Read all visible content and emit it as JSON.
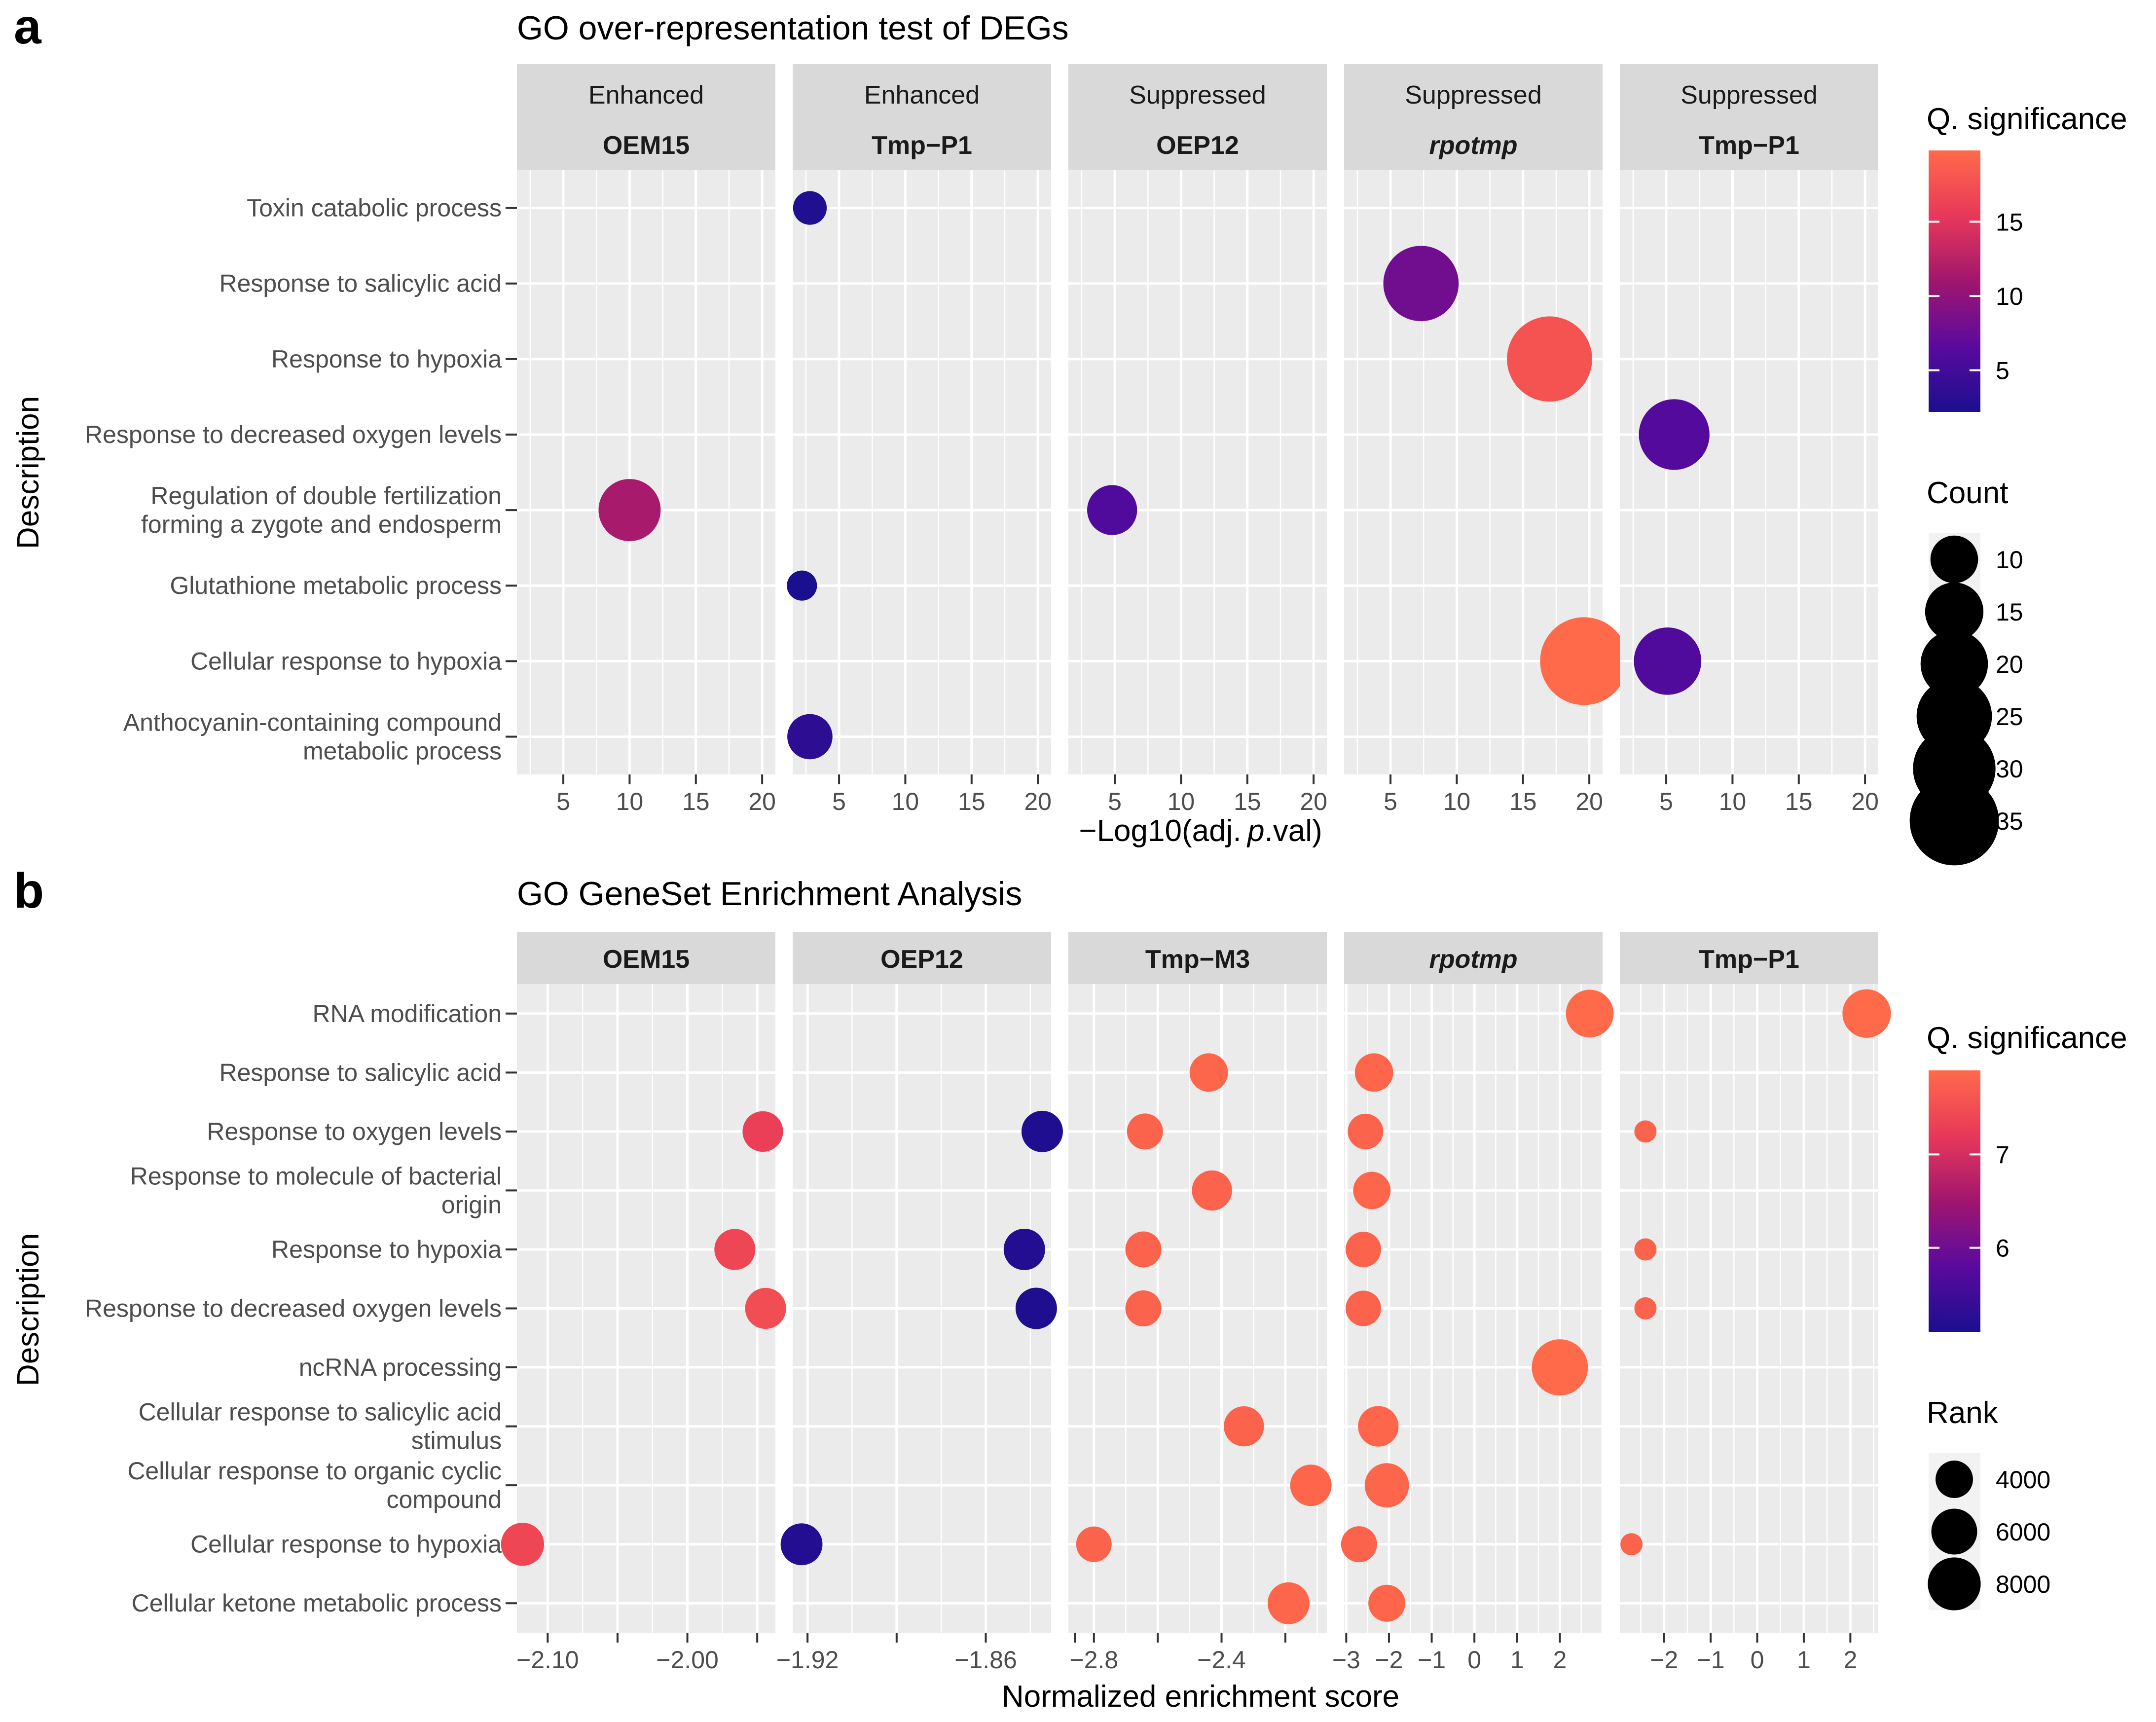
{
  "figure": {
    "panel_a_letter": "a",
    "panel_b_letter": "b"
  },
  "chart_data": [
    {
      "type": "scatter",
      "title": "GO over-representation test of DEGs",
      "ylabel": "Description",
      "xlabel_parts": [
        "−Log10(adj. ",
        "p",
        ".val)"
      ],
      "categories": [
        [
          "Toxin catabolic process"
        ],
        [
          "Response to salicylic acid"
        ],
        [
          "Response to hypoxia"
        ],
        [
          "Response to decreased oxygen levels"
        ],
        [
          "Regulation of double fertilization",
          "forming a zygote and endosperm"
        ],
        [
          "Glutathione metabolic process"
        ],
        [
          "Cellular response to hypoxia"
        ],
        [
          "Anthocyanin-containing compound",
          "metabolic process"
        ]
      ],
      "xlim": [
        1.5,
        21.0
      ],
      "xticks": [
        5,
        10,
        15,
        20
      ],
      "facets": [
        {
          "strip_top": "Enhanced",
          "strip_bottom": "OEM15",
          "italic": false,
          "points": [
            {
              "category": 4,
              "x": 10.0,
              "q": 11.5,
              "count": 17
            }
          ]
        },
        {
          "strip_top": "Enhanced",
          "strip_bottom": "Tmp−P1",
          "italic": false,
          "points": [
            {
              "category": 0,
              "x": 2.8,
              "q": 2.6,
              "count": 5
            },
            {
              "category": 5,
              "x": 2.2,
              "q": 2.2,
              "count": 4
            },
            {
              "category": 7,
              "x": 2.8,
              "q": 3.5,
              "count": 9
            }
          ]
        },
        {
          "strip_top": "Suppressed",
          "strip_bottom": "OEP12",
          "italic": false,
          "points": [
            {
              "category": 4,
              "x": 4.8,
              "q": 6.0,
              "count": 11
            }
          ]
        },
        {
          "strip_top": "Suppressed",
          "strip_bottom": "rpotmp",
          "italic": true,
          "points": [
            {
              "category": 1,
              "x": 7.3,
              "q": 8.0,
              "count": 25
            },
            {
              "category": 2,
              "x": 17.0,
              "q": 17.8,
              "count": 32
            },
            {
              "category": 6,
              "x": 19.6,
              "q": 19.8,
              "count": 34
            }
          ]
        },
        {
          "strip_top": "Suppressed",
          "strip_bottom": "Tmp−P1",
          "italic": false,
          "points": [
            {
              "category": 3,
              "x": 5.6,
              "q": 6.2,
              "count": 22
            },
            {
              "category": 6,
              "x": 5.1,
              "q": 6.0,
              "count": 20
            }
          ]
        }
      ],
      "color_legend": {
        "title": "Q. significance",
        "min": 2.2,
        "max": 19.8,
        "ticks": [
          5,
          10,
          15
        ]
      },
      "size_legend": {
        "title": "Count",
        "values": [
          10,
          15,
          20,
          25,
          30,
          35
        ]
      }
    },
    {
      "type": "scatter",
      "title": "GO GeneSet Enrichment Analysis",
      "ylabel": "Description",
      "xlabel": "Normalized enrichment score",
      "categories": [
        [
          "RNA modification"
        ],
        [
          "Response to salicylic acid"
        ],
        [
          "Response to oxygen levels"
        ],
        [
          "Response to molecule of bacterial",
          "origin"
        ],
        [
          "Response to hypoxia"
        ],
        [
          "Response to decreased oxygen levels"
        ],
        [
          "ncRNA processing"
        ],
        [
          "Cellular response to salicylic acid",
          "stimulus"
        ],
        [
          "Cellular response to organic cyclic",
          "compound"
        ],
        [
          "Cellular response to hypoxia"
        ],
        [
          "Cellular ketone metabolic process"
        ]
      ],
      "facets": [
        {
          "strip": "OEM15",
          "italic": false,
          "xlim": [
            -2.122,
            -1.937
          ],
          "xticks": [
            -2.1,
            -2.05,
            -2.0,
            -1.95
          ],
          "xticklabels": [
            "−2.10",
            "",
            "−2.00",
            ""
          ],
          "points": [
            {
              "category": 2,
              "x": -1.946,
              "q": 7.3,
              "rank": 4700
            },
            {
              "category": 4,
              "x": -1.966,
              "q": 7.4,
              "rank": 4800
            },
            {
              "category": 5,
              "x": -1.944,
              "q": 7.5,
              "rank": 4800
            },
            {
              "category": 9,
              "x": -2.118,
              "q": 7.4,
              "rank": 5300
            }
          ]
        },
        {
          "strip": "OEP12",
          "italic": false,
          "xlim": [
            -1.925,
            -1.838
          ],
          "xticks": [
            -1.92,
            -1.89,
            -1.86,
            -1.83
          ],
          "xticklabels": [
            "−1.92",
            "",
            "−1.86",
            ""
          ],
          "points": [
            {
              "category": 2,
              "x": -1.841,
              "q": 5.15,
              "rank": 4900
            },
            {
              "category": 4,
              "x": -1.847,
              "q": 5.2,
              "rank": 4900
            },
            {
              "category": 5,
              "x": -1.843,
              "q": 5.15,
              "rank": 4900
            },
            {
              "category": 9,
              "x": -1.922,
              "q": 5.2,
              "rank": 5000
            }
          ]
        },
        {
          "strip": "Tmp−M3",
          "italic": false,
          "xlim": [
            -2.88,
            -2.07
          ],
          "xticks": [
            -2.8,
            -2.6,
            -2.4,
            -2.2
          ],
          "xticklabels": [
            "−2.8",
            "",
            "−2.4",
            ""
          ],
          "points": [
            {
              "category": 1,
              "x": -2.44,
              "q": 7.85,
              "rank": 4200
            },
            {
              "category": 2,
              "x": -2.64,
              "q": 7.8,
              "rank": 3700
            },
            {
              "category": 3,
              "x": -2.43,
              "q": 7.8,
              "rank": 4600
            },
            {
              "category": 4,
              "x": -2.645,
              "q": 7.8,
              "rank": 3700
            },
            {
              "category": 5,
              "x": -2.645,
              "q": 7.8,
              "rank": 3700
            },
            {
              "category": 7,
              "x": -2.33,
              "q": 7.8,
              "rank": 4600
            },
            {
              "category": 8,
              "x": -2.12,
              "q": 7.85,
              "rank": 4900
            },
            {
              "category": 9,
              "x": -2.8,
              "q": 7.8,
              "rank": 3600
            },
            {
              "category": 10,
              "x": -2.19,
              "q": 7.85,
              "rank": 5000
            }
          ]
        },
        {
          "strip": "rpotmp",
          "italic": true,
          "xlim": [
            -3.05,
            3.0
          ],
          "xticks": [
            -3,
            -2,
            -1,
            0,
            1,
            2
          ],
          "xticklabels": [
            "−3",
            "−2",
            "−1",
            "0",
            "1",
            "2"
          ],
          "points": [
            {
              "category": 0,
              "x": 2.7,
              "q": 7.9,
              "rank": 6500
            },
            {
              "category": 1,
              "x": -2.35,
              "q": 7.85,
              "rank": 4200
            },
            {
              "category": 2,
              "x": -2.55,
              "q": 7.8,
              "rank": 3600
            },
            {
              "category": 3,
              "x": -2.4,
              "q": 7.85,
              "rank": 4000
            },
            {
              "category": 4,
              "x": -2.6,
              "q": 7.8,
              "rank": 3600
            },
            {
              "category": 5,
              "x": -2.6,
              "q": 7.8,
              "rank": 3600
            },
            {
              "category": 6,
              "x": 2.0,
              "q": 7.9,
              "rank": 9000
            },
            {
              "category": 7,
              "x": -2.25,
              "q": 7.85,
              "rank": 4700
            },
            {
              "category": 8,
              "x": -2.05,
              "q": 7.85,
              "rank": 5600
            },
            {
              "category": 9,
              "x": -2.7,
              "q": 7.8,
              "rank": 3700
            },
            {
              "category": 10,
              "x": -2.05,
              "q": 7.85,
              "rank": 3900
            }
          ]
        },
        {
          "strip": "Tmp−P1",
          "italic": false,
          "xlim": [
            -2.95,
            2.6
          ],
          "xticks": [
            -2,
            -1,
            0,
            1,
            2
          ],
          "xticklabels": [
            "−2",
            "−1",
            "0",
            "1",
            "2"
          ],
          "points": [
            {
              "category": 0,
              "x": 2.35,
              "q": 7.9,
              "rank": 6700
            },
            {
              "category": 2,
              "x": -2.4,
              "q": 7.8,
              "rank": 1400
            },
            {
              "category": 4,
              "x": -2.4,
              "q": 7.8,
              "rank": 1400
            },
            {
              "category": 5,
              "x": -2.4,
              "q": 7.8,
              "rank": 1400
            },
            {
              "category": 9,
              "x": -2.7,
              "q": 7.8,
              "rank": 1400
            }
          ]
        }
      ],
      "color_legend": {
        "title": "Q. significance",
        "min": 5.1,
        "max": 7.9,
        "ticks": [
          6,
          7
        ]
      },
      "size_legend": {
        "title": "Rank",
        "values": [
          4000,
          6000,
          8000
        ]
      }
    }
  ]
}
